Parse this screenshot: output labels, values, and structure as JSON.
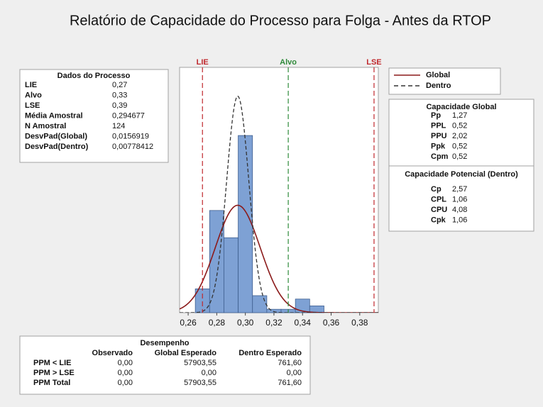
{
  "title": "Relatório de Capacidade do Processo para Folga - Antes da RTOP",
  "chart_data": {
    "type": "histogram",
    "bins": [
      0.265,
      0.275,
      0.285,
      0.295,
      0.305,
      0.315,
      0.325,
      0.335,
      0.345,
      0.355
    ],
    "values": [
      7,
      30,
      22,
      52,
      5,
      1,
      1,
      4,
      2
    ],
    "color": "#7ea1d4",
    "edge_color": "#3f5f8f",
    "xlim": [
      0.254,
      0.393
    ],
    "xticks": [
      {
        "value": 0.26,
        "label": "0,26"
      },
      {
        "value": 0.28,
        "label": "0,28"
      },
      {
        "value": 0.3,
        "label": "0,30"
      },
      {
        "value": 0.32,
        "label": "0,32"
      },
      {
        "value": 0.34,
        "label": "0,34"
      },
      {
        "value": 0.36,
        "label": "0,36"
      },
      {
        "value": 0.38,
        "label": "0,38"
      }
    ],
    "ylim": [
      0,
      72
    ],
    "reference_lines": [
      {
        "label": "LIE",
        "value": 0.27,
        "color": "#c0282d"
      },
      {
        "label": "Alvo",
        "value": 0.33,
        "color": "#2f8a3a"
      },
      {
        "label": "LSE",
        "value": 0.39,
        "color": "#c0282d"
      }
    ],
    "curves": [
      {
        "name": "Global",
        "color": "#8b1a1a",
        "dashed": false,
        "mean": 0.294677,
        "sd": 0.0156919
      },
      {
        "name": "Dentro",
        "color": "#333333",
        "dashed": true,
        "mean": 0.294677,
        "sd": 0.00778412
      }
    ]
  },
  "process_data": {
    "title": "Dados do Processo",
    "rows": [
      [
        "LIE",
        "0,27"
      ],
      [
        "Alvo",
        "0,33"
      ],
      [
        "LSE",
        "0,39"
      ],
      [
        "Média Amostral",
        "0,294677"
      ],
      [
        "N Amostral",
        "124"
      ],
      [
        "DesvPad(Global)",
        "0,0156919"
      ],
      [
        "DesvPad(Dentro)",
        "0,00778412"
      ]
    ]
  },
  "overall_capability": {
    "title": "Capacidade Global",
    "rows": [
      [
        "Pp",
        "1,27"
      ],
      [
        "PPL",
        "0,52"
      ],
      [
        "PPU",
        "2,02"
      ],
      [
        "Ppk",
        "0,52"
      ],
      [
        "Cpm",
        "0,52"
      ]
    ]
  },
  "potential_capability": {
    "title": "Capacidade Potencial (Dentro)",
    "rows": [
      [
        "Cp",
        "2,57"
      ],
      [
        "CPL",
        "1,06"
      ],
      [
        "CPU",
        "4,08"
      ],
      [
        "Cpk",
        "1,06"
      ]
    ]
  },
  "performance": {
    "title": "Desempenho",
    "columns": [
      "Observado",
      "Global Esperado",
      "Dentro Esperado"
    ],
    "rows": [
      [
        "PPM < LIE",
        "0,00",
        "57903,55",
        "761,60"
      ],
      [
        "PPM > LSE",
        "0,00",
        "0,00",
        "0,00"
      ],
      [
        "PPM Total",
        "0,00",
        "57903,55",
        "761,60"
      ]
    ]
  }
}
